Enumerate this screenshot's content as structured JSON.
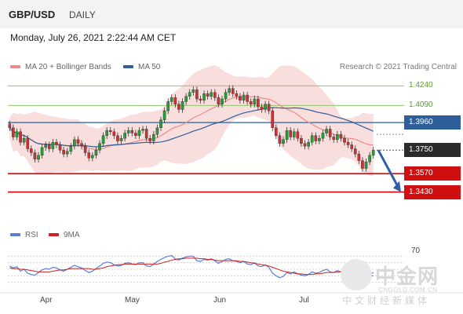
{
  "header": {
    "symbol": "GBP/USD",
    "period": "DAILY"
  },
  "datetime": "Monday, July 26, 2021 2:22:44 AM CET",
  "legend": {
    "bollinger": {
      "label": "MA 20 + Bollinger Bands",
      "color": "#f08a8a"
    },
    "ma50": {
      "label": "MA 50",
      "color": "#2f5f9a"
    }
  },
  "credit": "Research © 2021 Trading Central",
  "levels": [
    {
      "label": "1.4240",
      "style": "green"
    },
    {
      "label": "1.4090",
      "style": "green"
    },
    {
      "label": "1.3960",
      "style": "blue"
    },
    {
      "label": "1.3750",
      "style": "price"
    },
    {
      "label": "1.3570",
      "style": "red"
    },
    {
      "label": "1.3430",
      "style": "red"
    }
  ],
  "rsi_legend": {
    "rsi": {
      "label": "RSI",
      "color": "#5b7fd4"
    },
    "ma9": {
      "label": "9MA",
      "color": "#d02020"
    }
  },
  "rsi_level": "70",
  "x_labels": [
    "Apr",
    "May",
    "Jun",
    "Jul"
  ],
  "watermark": {
    "main": "中金网",
    "url": "CNGOLD.COM.CN",
    "sub": "中文财经新媒体"
  },
  "colors": {
    "up": "#2a9a3a",
    "down": "#d03030",
    "red_line": "#d01010",
    "blue_line": "#2f5f9a",
    "green_line": "#8fc46a",
    "price_box": "#2b2b2b",
    "band": "#f9dede",
    "arrow": "#2f5fa8"
  },
  "chart_data": {
    "type": "candlestick",
    "title": "GBP/USD",
    "timeframe": "DAILY",
    "x_tick_labels": [
      "Apr",
      "May",
      "Jun",
      "Jul"
    ],
    "ylim": [
      1.335,
      1.432
    ],
    "levels": [
      1.424,
      1.409,
      1.396,
      1.375,
      1.357,
      1.343
    ],
    "last_price": 1.375,
    "projection": {
      "from": 1.375,
      "to": 1.343
    },
    "closes": [
      1.392,
      1.385,
      1.389,
      1.381,
      1.384,
      1.376,
      1.373,
      1.368,
      1.371,
      1.377,
      1.379,
      1.376,
      1.381,
      1.379,
      1.375,
      1.372,
      1.374,
      1.378,
      1.383,
      1.38,
      1.378,
      1.373,
      1.369,
      1.371,
      1.375,
      1.38,
      1.386,
      1.39,
      1.389,
      1.386,
      1.382,
      1.384,
      1.388,
      1.39,
      1.388,
      1.386,
      1.39,
      1.391,
      1.384,
      1.382,
      1.387,
      1.392,
      1.398,
      1.405,
      1.412,
      1.415,
      1.41,
      1.406,
      1.412,
      1.416,
      1.419,
      1.421,
      1.414,
      1.413,
      1.418,
      1.416,
      1.419,
      1.415,
      1.41,
      1.414,
      1.419,
      1.422,
      1.418,
      1.416,
      1.413,
      1.417,
      1.412,
      1.41,
      1.414,
      1.408,
      1.406,
      1.41,
      1.405,
      1.392,
      1.386,
      1.38,
      1.383,
      1.39,
      1.385,
      1.389,
      1.384,
      1.38,
      1.378,
      1.381,
      1.386,
      1.382,
      1.384,
      1.388,
      1.391,
      1.385,
      1.383,
      1.387,
      1.384,
      1.381,
      1.379,
      1.376,
      1.372,
      1.367,
      1.361,
      1.366,
      1.371,
      1.375
    ],
    "rsi": [
      55,
      52,
      54,
      47,
      50,
      44,
      42,
      41,
      45,
      49,
      51,
      50,
      53,
      52,
      49,
      47,
      50,
      53,
      56,
      54,
      52,
      48,
      45,
      47,
      51,
      55,
      59,
      61,
      60,
      57,
      55,
      56,
      59,
      60,
      58,
      57,
      60,
      60,
      55,
      54,
      58,
      62,
      65,
      68,
      70,
      71,
      66,
      64,
      67,
      69,
      70,
      70,
      63,
      62,
      65,
      64,
      66,
      63,
      59,
      62,
      65,
      66,
      63,
      62,
      60,
      62,
      58,
      57,
      60,
      55,
      54,
      57,
      53,
      44,
      40,
      37,
      39,
      45,
      43,
      46,
      43,
      41,
      40,
      42,
      46,
      44,
      45,
      48,
      50,
      46,
      45,
      48,
      46,
      44,
      43,
      41,
      39,
      36,
      34,
      38,
      42,
      45
    ],
    "rsi_ma9": [
      52,
      51,
      51,
      50,
      50,
      49,
      48,
      47,
      46,
      46,
      46,
      46,
      47,
      48,
      49,
      49,
      50,
      51,
      51,
      51,
      51,
      51,
      51,
      50,
      50,
      51,
      52,
      54,
      55,
      56,
      57,
      57,
      58,
      58,
      58,
      58,
      58,
      58,
      58,
      58,
      58,
      58,
      59,
      61,
      62,
      64,
      65,
      66,
      66,
      67,
      67,
      67,
      67,
      66,
      66,
      65,
      65,
      64,
      63,
      63,
      63,
      63,
      63,
      63,
      62,
      62,
      61,
      60,
      59,
      58,
      57,
      56,
      55,
      53,
      51,
      49,
      47,
      46,
      45,
      44,
      43,
      43,
      42,
      42,
      42,
      43,
      43,
      44,
      45,
      45,
      45,
      46,
      46,
      46,
      46,
      45,
      44,
      43,
      41,
      40,
      40,
      40
    ],
    "rsi_level": 70
  }
}
